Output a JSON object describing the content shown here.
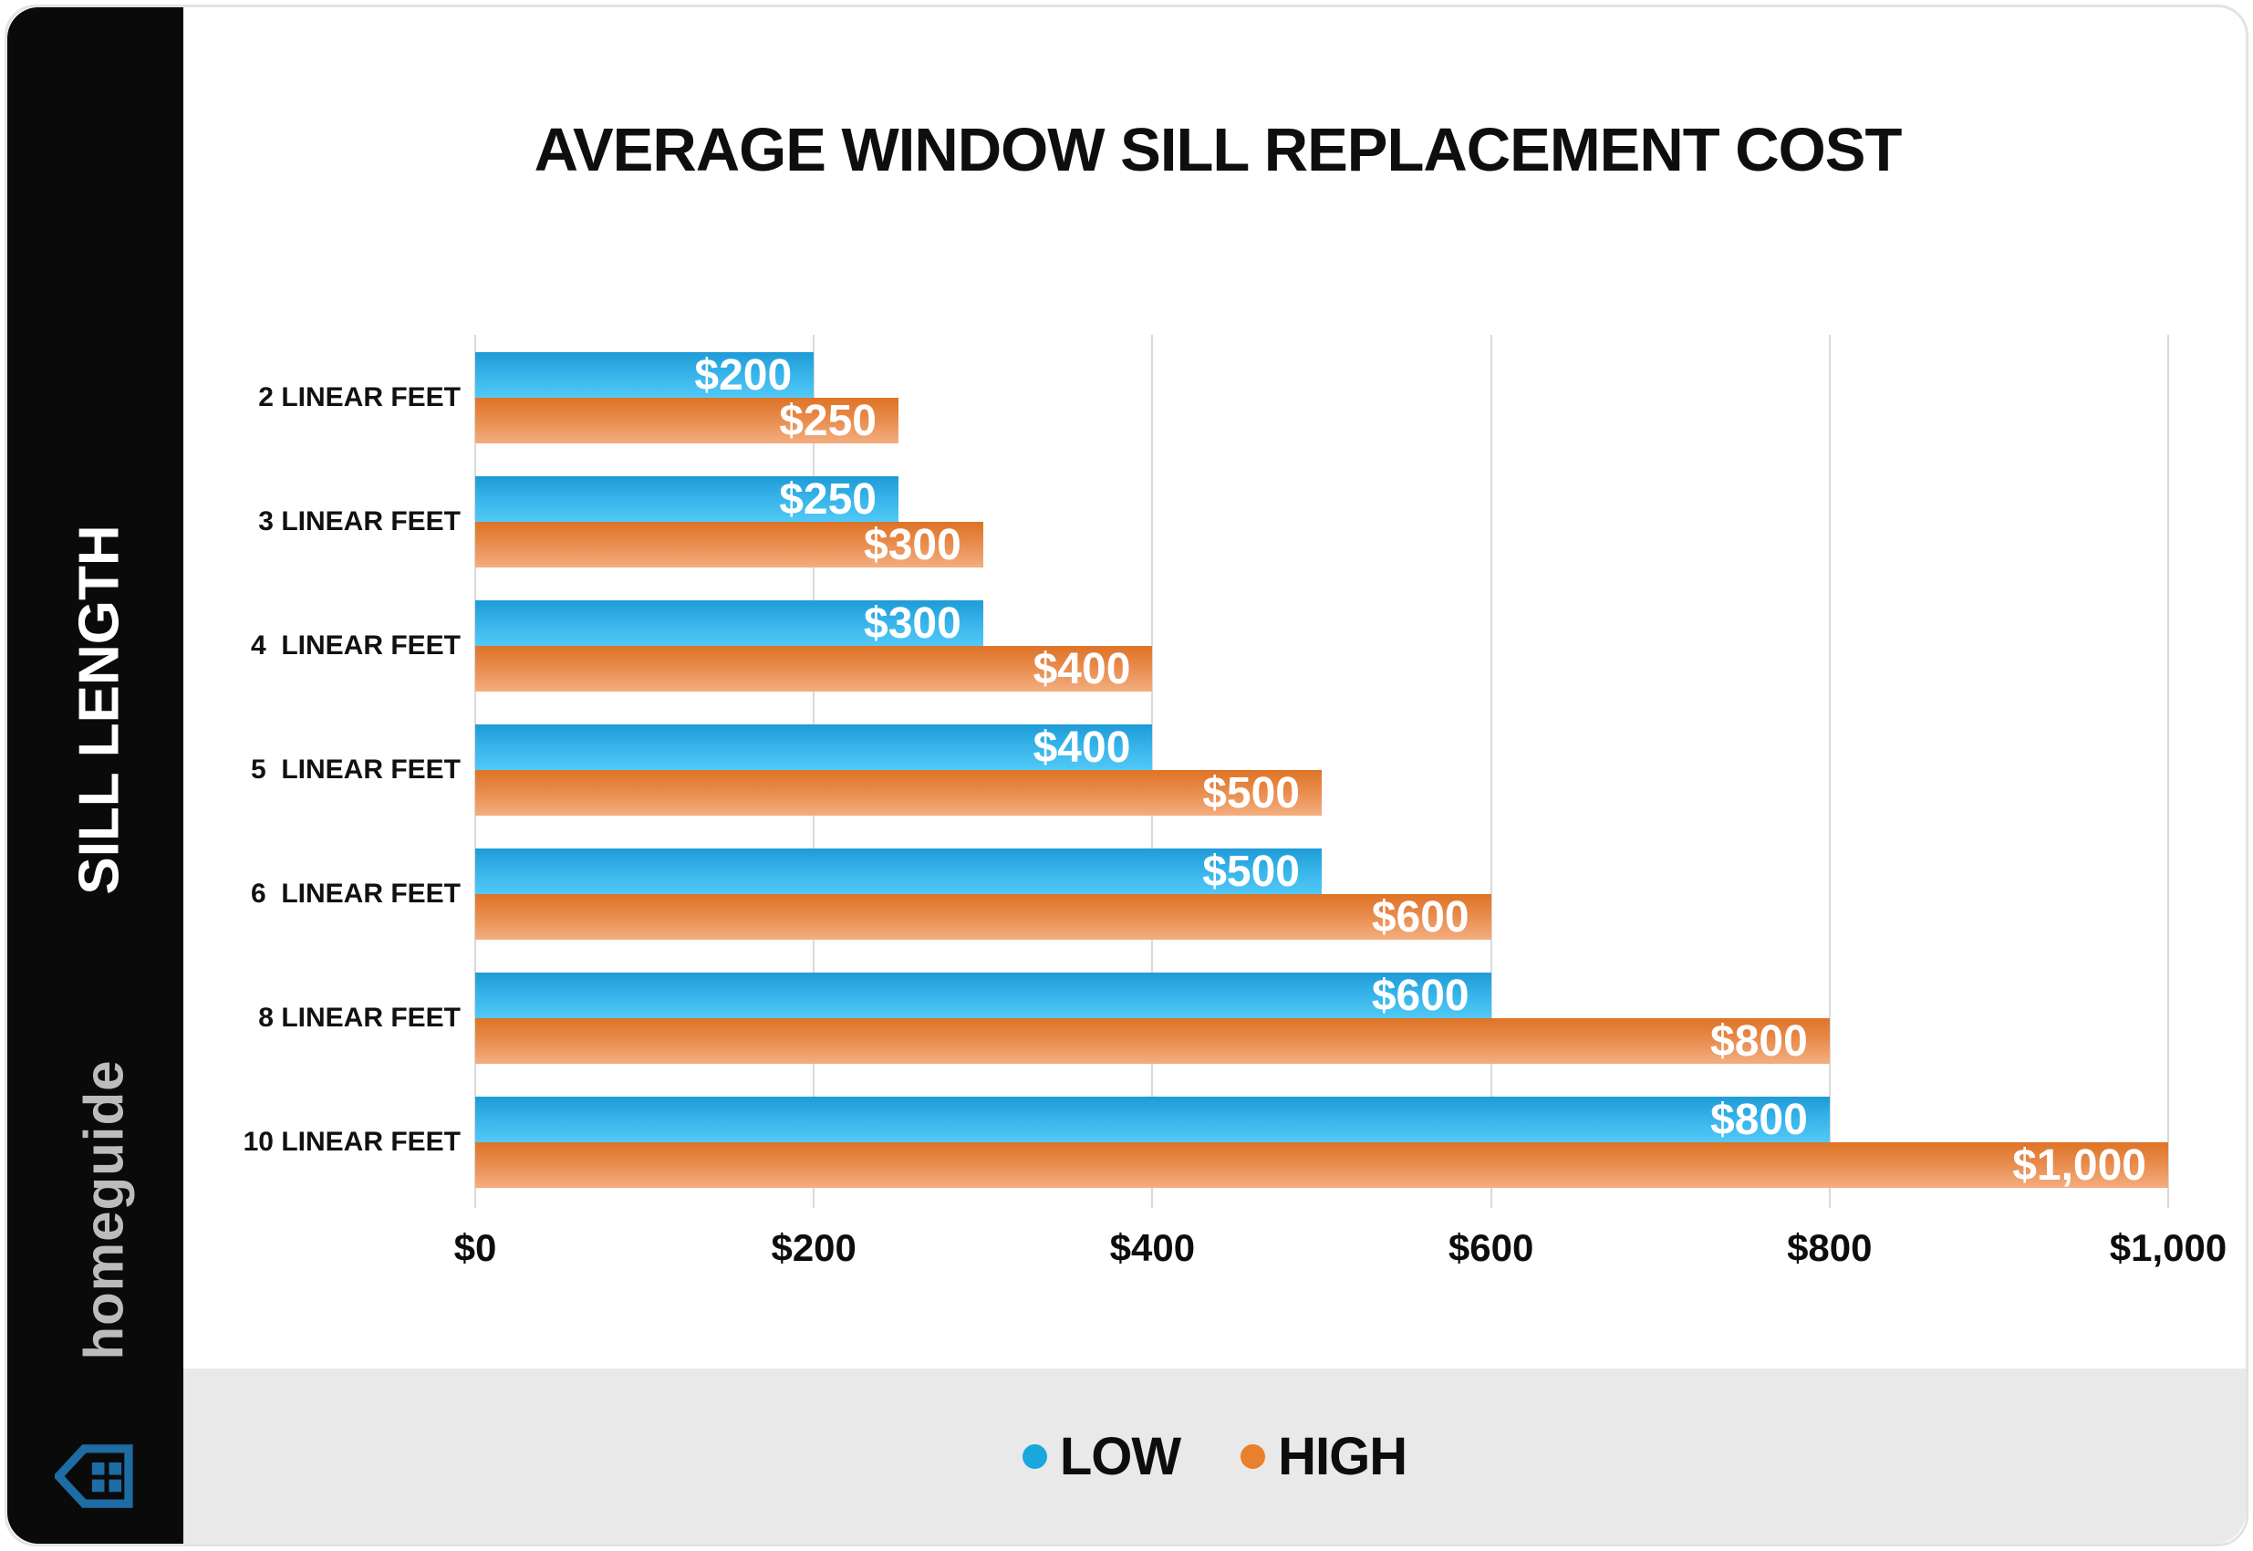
{
  "page": {
    "background": "#FFFFFF",
    "sidebar_color": "#0A0A0A",
    "footer_color": "#E9E9E9",
    "border_color": "#E3E3E3"
  },
  "sidebar": {
    "ylabel": "SILL LENGTH",
    "brand": "homeguide",
    "house_icon_color": "#1D6CA4"
  },
  "legend": {
    "items": [
      {
        "label": "LOW",
        "color": "#18A8DC"
      },
      {
        "label": "HIGH",
        "color": "#E8802D"
      }
    ]
  },
  "chart_data": {
    "type": "bar",
    "orientation": "horizontal",
    "title": "AVERAGE WINDOW SILL REPLACEMENT COST",
    "ylabel": "SILL LENGTH",
    "grid": true,
    "legend_position": "bottom",
    "categories": [
      "2 LINEAR FEET",
      "3 LINEAR FEET",
      "4  LINEAR FEET",
      "5  LINEAR FEET",
      "6  LINEAR FEET",
      "8 LINEAR FEET",
      "10 LINEAR FEET"
    ],
    "series": [
      {
        "name": "LOW",
        "color": "#18A8DC",
        "gradient_top": "#1E9BD7",
        "gradient_bottom": "#52C9F7",
        "values": [
          200,
          250,
          300,
          400,
          500,
          600,
          800
        ],
        "labels": [
          "$200",
          "$250",
          "$300",
          "$400",
          "$500",
          "$600",
          "$800"
        ]
      },
      {
        "name": "HIGH",
        "color": "#E8802D",
        "gradient_top": "#DE7326",
        "gradient_bottom": "#F3AE7F",
        "values": [
          250,
          300,
          400,
          500,
          600,
          800,
          1000
        ],
        "labels": [
          "$250",
          "$300",
          "$400",
          "$500",
          "$600",
          "$800",
          "$1,000"
        ]
      }
    ],
    "x_axis": {
      "min": 0,
      "max": 1000,
      "ticks": [
        {
          "value": 0,
          "label": "$0"
        },
        {
          "value": 200,
          "label": "$200"
        },
        {
          "value": 400,
          "label": "$400"
        },
        {
          "value": 600,
          "label": "$600"
        },
        {
          "value": 800,
          "label": "$800"
        },
        {
          "value": 1000,
          "label": "$1,000"
        }
      ]
    }
  }
}
